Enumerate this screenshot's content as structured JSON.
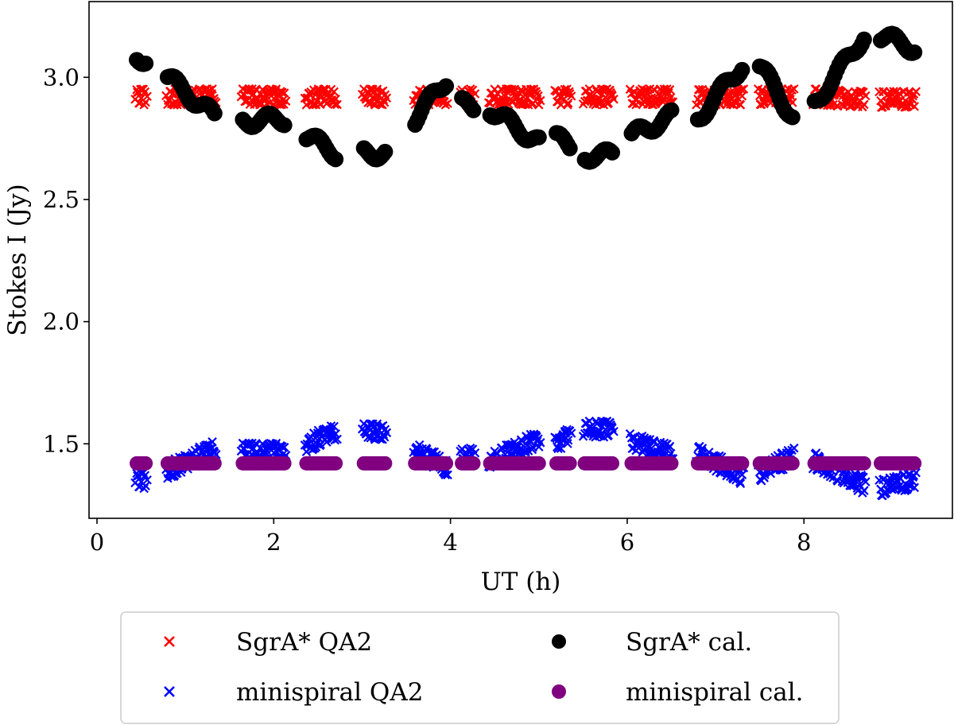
{
  "chart_data": {
    "type": "scatter",
    "xlabel": "UT (h)",
    "ylabel": "Stokes I (Jy)",
    "xlim": [
      -0.09,
      9.68
    ],
    "ylim": [
      1.195,
      3.31
    ],
    "xticks": [
      "0",
      "2",
      "4",
      "6",
      "8"
    ],
    "yticks": [
      "1.5",
      "2.0",
      "2.5",
      "3.0"
    ],
    "grid": false,
    "legend_position": "below",
    "scans_ut_h": [
      [
        0.45,
        0.55
      ],
      [
        0.8,
        1.33
      ],
      [
        1.65,
        2.12
      ],
      [
        2.37,
        2.7
      ],
      [
        3.02,
        3.26
      ],
      [
        3.6,
        3.95
      ],
      [
        4.13,
        4.26
      ],
      [
        4.45,
        5.0
      ],
      [
        5.2,
        5.35
      ],
      [
        5.52,
        5.83
      ],
      [
        6.05,
        6.5
      ],
      [
        6.8,
        7.3
      ],
      [
        7.5,
        7.87
      ],
      [
        8.12,
        8.68
      ],
      [
        8.87,
        9.25
      ]
    ],
    "series": [
      {
        "name": "SgrA* QA2",
        "marker": "x",
        "color": "#ff0000",
        "values_start_end": [
          [
            2.92,
            2.92
          ],
          [
            2.92,
            2.92
          ],
          [
            2.92,
            2.92
          ],
          [
            2.92,
            2.92
          ],
          [
            2.92,
            2.92
          ],
          [
            2.92,
            2.92
          ],
          [
            2.92,
            2.92
          ],
          [
            2.92,
            2.92
          ],
          [
            2.92,
            2.92
          ],
          [
            2.92,
            2.92
          ],
          [
            2.92,
            2.92
          ],
          [
            2.92,
            2.92
          ],
          [
            2.92,
            2.92
          ],
          [
            2.92,
            2.91
          ],
          [
            2.91,
            2.91
          ]
        ]
      },
      {
        "name": "minispiral QA2",
        "marker": "x",
        "color": "#0000ff",
        "values_start_end": [
          [
            1.35,
            1.35
          ],
          [
            1.39,
            1.48
          ],
          [
            1.47,
            1.47
          ],
          [
            1.5,
            1.55
          ],
          [
            1.55,
            1.55
          ],
          [
            1.48,
            1.4
          ],
          [
            1.45,
            1.45
          ],
          [
            1.43,
            1.52
          ],
          [
            1.5,
            1.54
          ],
          [
            1.56,
            1.56
          ],
          [
            1.51,
            1.46
          ],
          [
            1.46,
            1.37
          ],
          [
            1.38,
            1.45
          ],
          [
            1.43,
            1.33
          ],
          [
            1.32,
            1.35
          ]
        ]
      },
      {
        "name": "SgrA* cal.",
        "marker": "o",
        "color": "#000000",
        "values_start_end": [
          [
            3.08,
            3.08
          ],
          [
            3.0,
            2.84
          ],
          [
            2.82,
            2.83
          ],
          [
            2.76,
            2.69
          ],
          [
            2.69,
            2.69
          ],
          [
            2.83,
            2.99
          ],
          [
            2.89,
            2.88
          ],
          [
            2.87,
            2.73
          ],
          [
            2.75,
            2.72
          ],
          [
            2.68,
            2.68
          ],
          [
            2.76,
            2.84
          ],
          [
            2.83,
            3.05
          ],
          [
            3.05,
            2.84
          ],
          [
            2.89,
            3.17
          ],
          [
            3.17,
            3.12
          ]
        ]
      },
      {
        "name": "minispiral cal.",
        "marker": "o",
        "color": "#800080",
        "values_start_end": [
          [
            1.42,
            1.42
          ],
          [
            1.42,
            1.42
          ],
          [
            1.42,
            1.42
          ],
          [
            1.42,
            1.42
          ],
          [
            1.42,
            1.42
          ],
          [
            1.42,
            1.42
          ],
          [
            1.42,
            1.42
          ],
          [
            1.42,
            1.42
          ],
          [
            1.42,
            1.42
          ],
          [
            1.42,
            1.42
          ],
          [
            1.42,
            1.42
          ],
          [
            1.42,
            1.42
          ],
          [
            1.42,
            1.42
          ],
          [
            1.42,
            1.42
          ],
          [
            1.42,
            1.42
          ]
        ]
      }
    ]
  }
}
